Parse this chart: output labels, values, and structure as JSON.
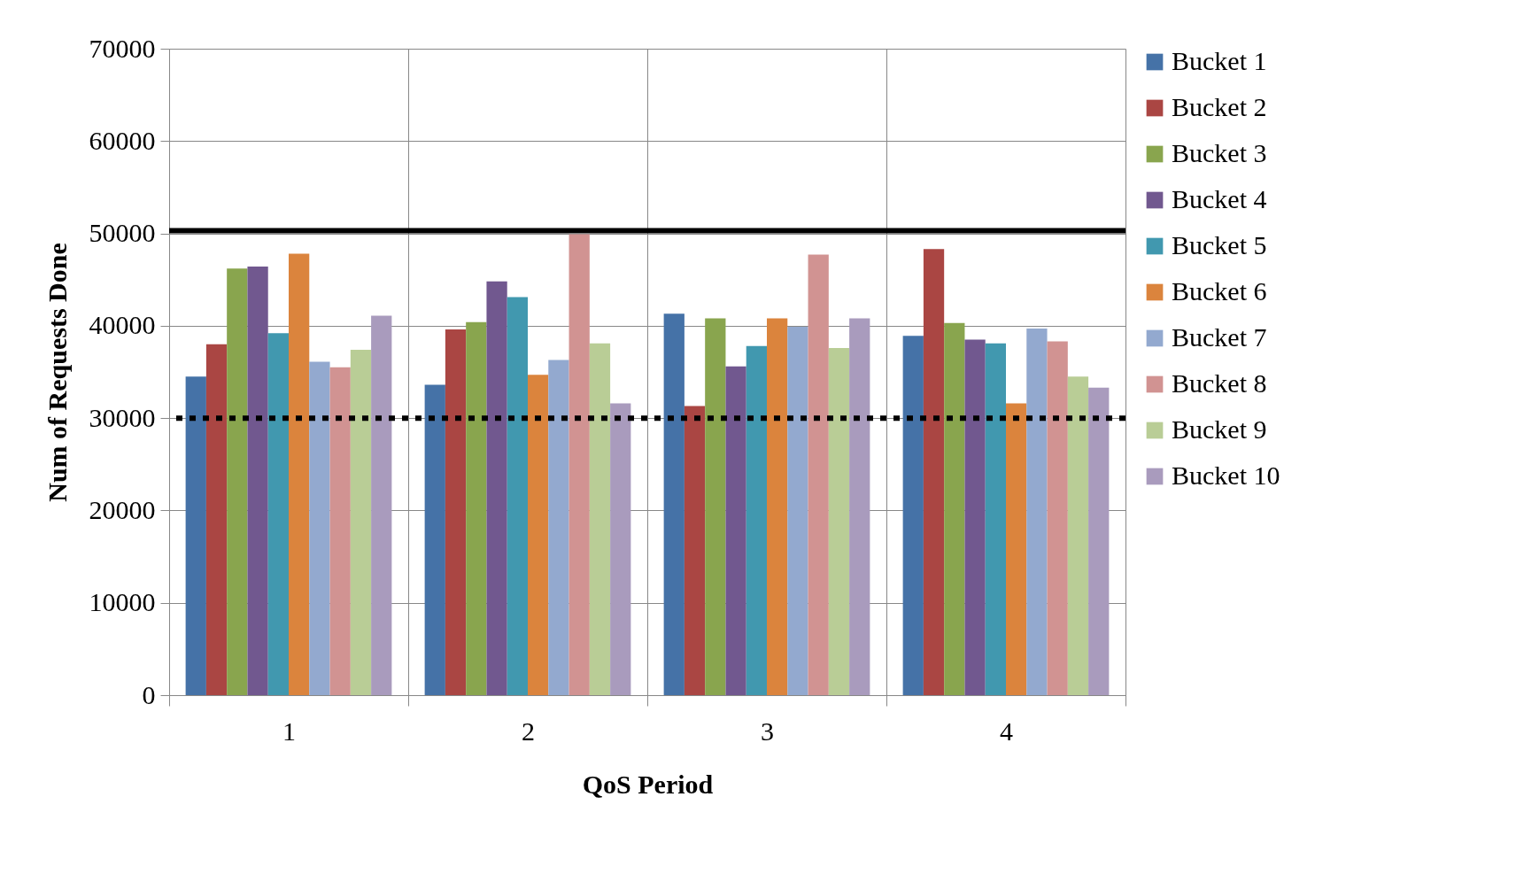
{
  "chart_data": {
    "type": "bar",
    "xlabel": "QoS Period",
    "ylabel": "Num of Requests Done",
    "categories": [
      "1",
      "2",
      "3",
      "4"
    ],
    "series": [
      {
        "name": "Bucket 1",
        "color": "#4572a7",
        "values": [
          34500,
          33600,
          41300,
          38900
        ]
      },
      {
        "name": "Bucket 2",
        "color": "#aa4643",
        "values": [
          38000,
          39600,
          31300,
          48300
        ]
      },
      {
        "name": "Bucket 3",
        "color": "#89a54e",
        "values": [
          46200,
          40400,
          40800,
          40300
        ]
      },
      {
        "name": "Bucket 4",
        "color": "#71588f",
        "values": [
          46400,
          44800,
          35600,
          38500
        ]
      },
      {
        "name": "Bucket 5",
        "color": "#4198af",
        "values": [
          39200,
          43100,
          37800,
          38100
        ]
      },
      {
        "name": "Bucket 6",
        "color": "#db843d",
        "values": [
          47800,
          34700,
          40800,
          31600
        ]
      },
      {
        "name": "Bucket 7",
        "color": "#93a9cf",
        "values": [
          36100,
          36300,
          39900,
          39700
        ]
      },
      {
        "name": "Bucket 8",
        "color": "#d19392",
        "values": [
          35500,
          49900,
          47700,
          38300
        ]
      },
      {
        "name": "Bucket 9",
        "color": "#b9cd96",
        "values": [
          37400,
          38100,
          37600,
          34500
        ]
      },
      {
        "name": "Bucket 10",
        "color": "#a99bbd",
        "values": [
          41100,
          31600,
          40800,
          33300
        ]
      }
    ],
    "ylim": [
      0,
      70000
    ],
    "yticks": [
      0,
      10000,
      20000,
      30000,
      40000,
      50000,
      60000,
      70000
    ],
    "ref_lines": [
      {
        "axis": "y",
        "value": 50300,
        "color": "#000000",
        "line_style": "solid"
      },
      {
        "axis": "y",
        "value": 30000,
        "color": "#000000",
        "line_style": "dotted"
      }
    ],
    "grid": true,
    "legend": "right"
  }
}
